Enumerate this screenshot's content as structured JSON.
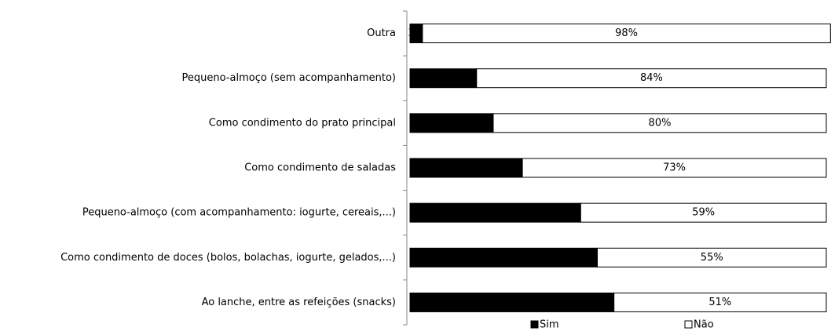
{
  "chart_data": {
    "type": "stacked_bar_horizontal",
    "categories": [
      "Outra",
      "Pequeno-almoço  (sem acompanhamento)",
      "Como condimento do prato principal",
      "Como condimento de saladas",
      "Pequeno-almoço  (com acompanhamento: iogurte, cereais,...)",
      "Como condimento de doces (bolos, bolachas, iogurte, gelados,...)",
      "Ao lanche, entre as refeições (snacks)"
    ],
    "series": [
      {
        "name": "Sim",
        "color": "#000000",
        "values": [
          3,
          16,
          20,
          27,
          41,
          45,
          49
        ],
        "value_labels": [
          "3%",
          "16%",
          "20%",
          "27%",
          "41%",
          "45%",
          "49%"
        ]
      },
      {
        "name": "Não",
        "color": "#ffffff",
        "values": [
          98,
          84,
          80,
          73,
          59,
          55,
          51
        ],
        "value_labels": [
          "98%",
          "84%",
          "80%",
          "73%",
          "59%",
          "55%",
          "51%"
        ]
      }
    ],
    "xlim": [
      0,
      100
    ],
    "legend": "bottom"
  }
}
